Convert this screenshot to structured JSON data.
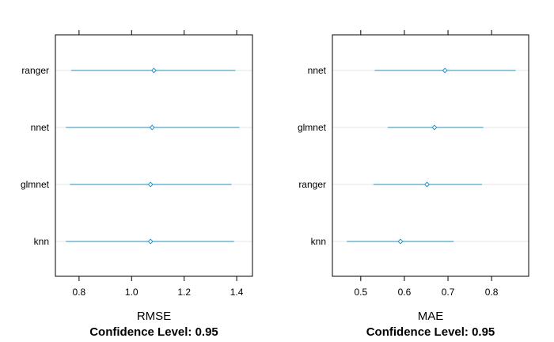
{
  "chart_data": [
    {
      "type": "dotplot",
      "xlabel": "RMSE",
      "subtitle": "Confidence Level: 0.95",
      "xlim": [
        0.71,
        1.46
      ],
      "xticks": [
        0.8,
        1.0,
        1.2,
        1.4
      ],
      "xtick_labels": [
        "0.8",
        "1.0",
        "1.2",
        "1.4"
      ],
      "categories": [
        "ranger",
        "nnet",
        "glmnet",
        "knn"
      ],
      "estimate": [
        1.085,
        1.078,
        1.072,
        1.072
      ],
      "lower": [
        0.77,
        0.75,
        0.765,
        0.75
      ],
      "upper": [
        1.395,
        1.41,
        1.38,
        1.39
      ],
      "color": "#1f8fbf",
      "grid": true
    },
    {
      "type": "dotplot",
      "xlabel": "MAE",
      "subtitle": "Confidence Level: 0.95",
      "xlim": [
        0.435,
        0.885
      ],
      "xticks": [
        0.5,
        0.6,
        0.7,
        0.8
      ],
      "xtick_labels": [
        "0.5",
        "0.6",
        "0.7",
        "0.8"
      ],
      "categories": [
        "nnet",
        "glmnet",
        "ranger",
        "knn"
      ],
      "estimate": [
        0.693,
        0.669,
        0.652,
        0.591
      ],
      "lower": [
        0.532,
        0.562,
        0.529,
        0.468
      ],
      "upper": [
        0.855,
        0.781,
        0.778,
        0.713
      ],
      "color": "#1f8fbf",
      "grid": true
    }
  ]
}
